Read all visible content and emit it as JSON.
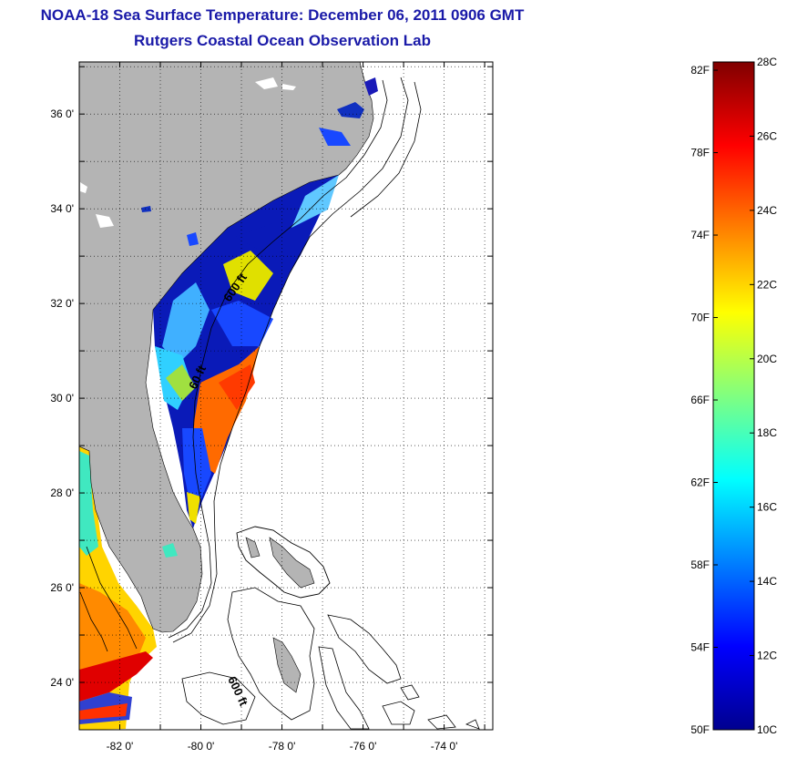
{
  "title_line1": "NOAA-18 Sea Surface Temperature:  December 06, 2011 0906 GMT",
  "title_line2": "Rutgers Coastal Ocean Observation Lab",
  "map": {
    "lon_range": [
      -83.0,
      -72.8
    ],
    "lat_range": [
      23.0,
      37.1
    ],
    "lat_ticks": [
      {
        "value": 24,
        "label": "24 0'"
      },
      {
        "value": 26,
        "label": "26 0'"
      },
      {
        "value": 28,
        "label": "28 0'"
      },
      {
        "value": 30,
        "label": "30 0'"
      },
      {
        "value": 32,
        "label": "32 0'"
      },
      {
        "value": 34,
        "label": "34 0'"
      },
      {
        "value": 36,
        "label": "36 0'"
      }
    ],
    "lon_ticks": [
      {
        "value": -82,
        "label": "-82 0'"
      },
      {
        "value": -80,
        "label": "-80 0'"
      },
      {
        "value": -78,
        "label": "-78 0'"
      },
      {
        "value": -76,
        "label": "-76 0'"
      },
      {
        "value": -74,
        "label": "-74 0'"
      }
    ],
    "contour_labels": [
      "60 ft",
      "600 ft",
      "600 ft"
    ],
    "land_color": "#b4b4b4",
    "ocean_color": "#ffffff"
  },
  "colorbar": {
    "range_c": [
      10,
      28
    ],
    "left_labels": [
      "82F",
      "78F",
      "74F",
      "70F",
      "66F",
      "62F",
      "58F",
      "54F",
      "50F"
    ],
    "left_values_f": [
      82,
      78,
      74,
      70,
      66,
      62,
      58,
      54,
      50
    ],
    "right_labels": [
      "28C",
      "26C",
      "24C",
      "22C",
      "20C",
      "18C",
      "16C",
      "14C",
      "12C",
      "10C"
    ],
    "right_values_c": [
      28,
      26,
      24,
      22,
      20,
      18,
      16,
      14,
      12,
      10
    ],
    "colormap": "jet"
  }
}
